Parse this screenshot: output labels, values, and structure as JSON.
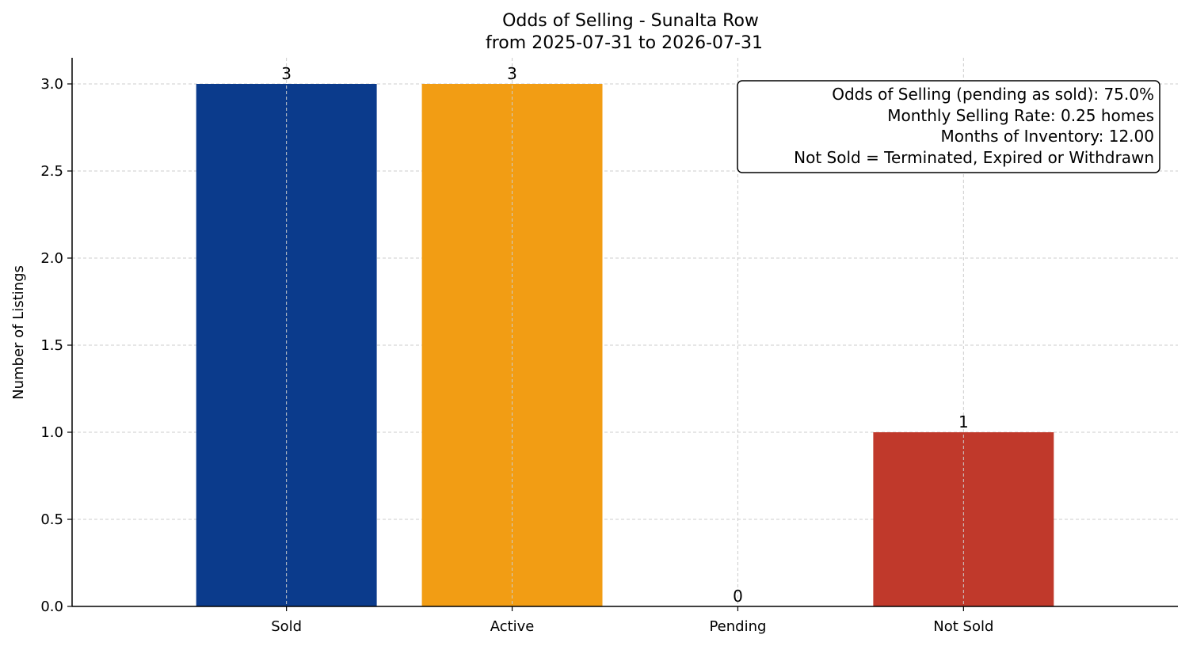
{
  "chart_data": {
    "type": "bar",
    "title": "Odds of Selling - Sunalta Row",
    "subtitle": "from 2025-07-31 to 2026-07-31",
    "xlabel": "",
    "ylabel": "Number of Listings",
    "categories": [
      "Sold",
      "Active",
      "Pending",
      "Not Sold"
    ],
    "values": [
      3,
      3,
      0,
      1
    ],
    "data_labels": [
      "3",
      "3",
      "0",
      "1"
    ],
    "colors": [
      "#0b3b8c",
      "#f29d14",
      "#f29d14",
      "#c0392b"
    ],
    "ylim": [
      0,
      3.15
    ],
    "yticks": [
      0.0,
      0.5,
      1.0,
      1.5,
      2.0,
      2.5,
      3.0
    ],
    "ytick_labels": [
      "0.0",
      "0.5",
      "1.0",
      "1.5",
      "2.0",
      "2.5",
      "3.0"
    ],
    "grid": true,
    "info_box": {
      "placement": "top-right",
      "lines": [
        "Odds of Selling (pending as sold): 75.0%",
        "Monthly Selling Rate: 0.25 homes",
        "Months of Inventory: 12.00",
        "Not Sold = Terminated, Expired or Withdrawn"
      ]
    }
  }
}
